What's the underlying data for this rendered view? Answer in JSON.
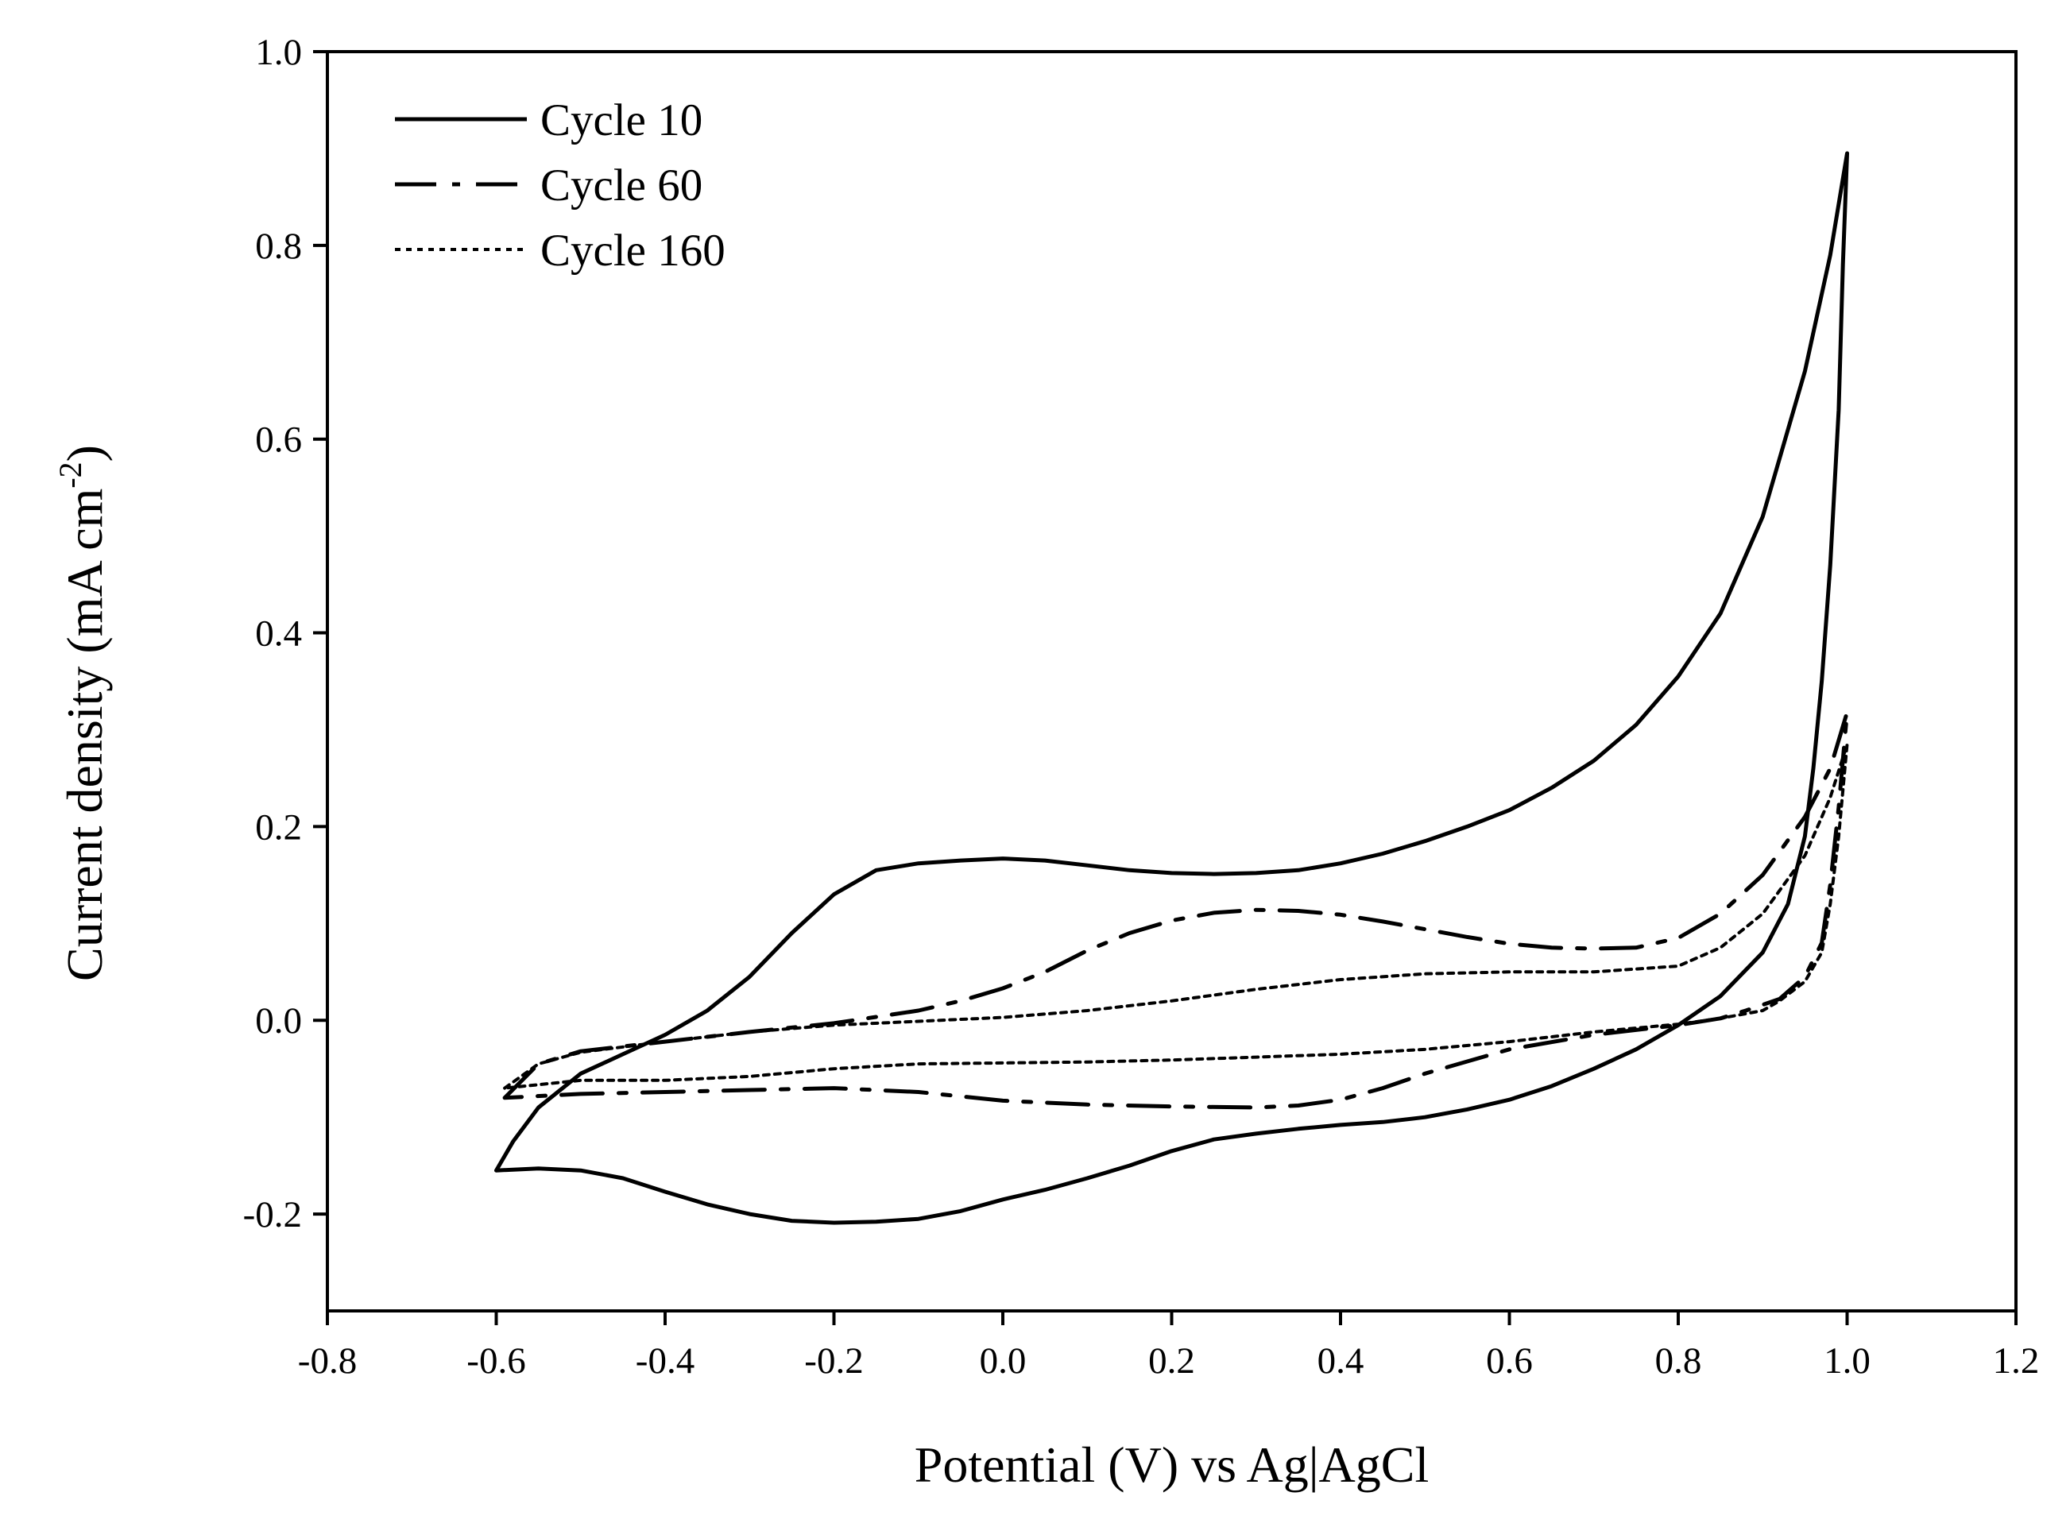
{
  "chart_data": {
    "type": "line",
    "title": "",
    "xlabel": "Potential (V) vs Ag|AgCl",
    "ylabel_main": "Current density (mA cm",
    "ylabel_sup": "-2",
    "ylabel_close": ")",
    "xlim": [
      -0.8,
      1.2
    ],
    "ylim": [
      -0.3,
      1.0
    ],
    "xticks": [
      -0.8,
      -0.6,
      -0.4,
      -0.2,
      0.0,
      0.2,
      0.4,
      0.6,
      0.8,
      1.0,
      1.2
    ],
    "xtick_labels": [
      "-0.8",
      "-0.6",
      "-0.4",
      "-0.2",
      "0.0",
      "0.2",
      "0.4",
      "0.6",
      "0.8",
      "1.0",
      "1.2"
    ],
    "yticks": [
      -0.2,
      0.0,
      0.2,
      0.4,
      0.6,
      0.8,
      1.0
    ],
    "ytick_labels": [
      "-0.2",
      "0.0",
      "0.2",
      "0.4",
      "0.6",
      "0.8",
      "1.0"
    ],
    "grid": false,
    "legend_position": "top-left",
    "series": [
      {
        "name": "Cycle 10",
        "style": "solid",
        "points": [
          [
            -0.6,
            -0.155
          ],
          [
            -0.58,
            -0.125
          ],
          [
            -0.55,
            -0.09
          ],
          [
            -0.5,
            -0.055
          ],
          [
            -0.45,
            -0.035
          ],
          [
            -0.4,
            -0.015
          ],
          [
            -0.35,
            0.01
          ],
          [
            -0.3,
            0.045
          ],
          [
            -0.25,
            0.09
          ],
          [
            -0.2,
            0.13
          ],
          [
            -0.15,
            0.155
          ],
          [
            -0.1,
            0.162
          ],
          [
            -0.05,
            0.165
          ],
          [
            0.0,
            0.167
          ],
          [
            0.05,
            0.165
          ],
          [
            0.1,
            0.16
          ],
          [
            0.15,
            0.155
          ],
          [
            0.2,
            0.152
          ],
          [
            0.25,
            0.151
          ],
          [
            0.3,
            0.152
          ],
          [
            0.35,
            0.155
          ],
          [
            0.4,
            0.162
          ],
          [
            0.45,
            0.172
          ],
          [
            0.5,
            0.185
          ],
          [
            0.55,
            0.2
          ],
          [
            0.6,
            0.217
          ],
          [
            0.65,
            0.24
          ],
          [
            0.7,
            0.268
          ],
          [
            0.75,
            0.305
          ],
          [
            0.8,
            0.355
          ],
          [
            0.85,
            0.42
          ],
          [
            0.9,
            0.52
          ],
          [
            0.95,
            0.67
          ],
          [
            0.98,
            0.79
          ],
          [
            1.0,
            0.895
          ],
          [
            0.995,
            0.78
          ],
          [
            0.99,
            0.63
          ],
          [
            0.98,
            0.47
          ],
          [
            0.97,
            0.35
          ],
          [
            0.96,
            0.26
          ],
          [
            0.95,
            0.19
          ],
          [
            0.93,
            0.12
          ],
          [
            0.9,
            0.07
          ],
          [
            0.85,
            0.025
          ],
          [
            0.8,
            -0.005
          ],
          [
            0.75,
            -0.03
          ],
          [
            0.7,
            -0.05
          ],
          [
            0.65,
            -0.068
          ],
          [
            0.6,
            -0.082
          ],
          [
            0.55,
            -0.092
          ],
          [
            0.5,
            -0.1
          ],
          [
            0.45,
            -0.105
          ],
          [
            0.4,
            -0.108
          ],
          [
            0.35,
            -0.112
          ],
          [
            0.3,
            -0.117
          ],
          [
            0.25,
            -0.123
          ],
          [
            0.2,
            -0.135
          ],
          [
            0.15,
            -0.15
          ],
          [
            0.1,
            -0.163
          ],
          [
            0.05,
            -0.175
          ],
          [
            0.0,
            -0.185
          ],
          [
            -0.05,
            -0.197
          ],
          [
            -0.1,
            -0.205
          ],
          [
            -0.15,
            -0.208
          ],
          [
            -0.2,
            -0.209
          ],
          [
            -0.25,
            -0.207
          ],
          [
            -0.3,
            -0.2
          ],
          [
            -0.35,
            -0.19
          ],
          [
            -0.4,
            -0.177
          ],
          [
            -0.45,
            -0.163
          ],
          [
            -0.5,
            -0.155
          ],
          [
            -0.55,
            -0.153
          ],
          [
            -0.6,
            -0.155
          ]
        ]
      },
      {
        "name": "Cycle 60",
        "style": "dashdot",
        "points": [
          [
            -0.59,
            -0.08
          ],
          [
            -0.55,
            -0.045
          ],
          [
            -0.5,
            -0.032
          ],
          [
            -0.4,
            -0.022
          ],
          [
            -0.3,
            -0.012
          ],
          [
            -0.2,
            -0.003
          ],
          [
            -0.1,
            0.01
          ],
          [
            -0.05,
            0.02
          ],
          [
            0.0,
            0.033
          ],
          [
            0.05,
            0.05
          ],
          [
            0.1,
            0.072
          ],
          [
            0.15,
            0.09
          ],
          [
            0.2,
            0.103
          ],
          [
            0.25,
            0.111
          ],
          [
            0.3,
            0.114
          ],
          [
            0.35,
            0.113
          ],
          [
            0.4,
            0.109
          ],
          [
            0.45,
            0.102
          ],
          [
            0.5,
            0.094
          ],
          [
            0.55,
            0.086
          ],
          [
            0.6,
            0.079
          ],
          [
            0.65,
            0.075
          ],
          [
            0.7,
            0.074
          ],
          [
            0.75,
            0.075
          ],
          [
            0.8,
            0.085
          ],
          [
            0.85,
            0.11
          ],
          [
            0.9,
            0.15
          ],
          [
            0.95,
            0.21
          ],
          [
            0.98,
            0.26
          ],
          [
            1.0,
            0.318
          ],
          [
            0.99,
            0.22
          ],
          [
            0.98,
            0.14
          ],
          [
            0.97,
            0.08
          ],
          [
            0.95,
            0.045
          ],
          [
            0.92,
            0.022
          ],
          [
            0.88,
            0.01
          ],
          [
            0.85,
            0.002
          ],
          [
            0.8,
            -0.005
          ],
          [
            0.7,
            -0.015
          ],
          [
            0.6,
            -0.03
          ],
          [
            0.5,
            -0.055
          ],
          [
            0.45,
            -0.07
          ],
          [
            0.4,
            -0.082
          ],
          [
            0.35,
            -0.088
          ],
          [
            0.3,
            -0.09
          ],
          [
            0.2,
            -0.089
          ],
          [
            0.1,
            -0.087
          ],
          [
            0.0,
            -0.083
          ],
          [
            -0.1,
            -0.074
          ],
          [
            -0.2,
            -0.07
          ],
          [
            -0.3,
            -0.072
          ],
          [
            -0.4,
            -0.074
          ],
          [
            -0.5,
            -0.076
          ],
          [
            -0.59,
            -0.08
          ]
        ]
      },
      {
        "name": "Cycle 160",
        "style": "dotted",
        "points": [
          [
            -0.59,
            -0.07
          ],
          [
            -0.55,
            -0.045
          ],
          [
            -0.5,
            -0.033
          ],
          [
            -0.4,
            -0.022
          ],
          [
            -0.3,
            -0.012
          ],
          [
            -0.2,
            -0.005
          ],
          [
            -0.1,
            -0.001
          ],
          [
            0.0,
            0.003
          ],
          [
            0.1,
            0.01
          ],
          [
            0.2,
            0.02
          ],
          [
            0.3,
            0.032
          ],
          [
            0.4,
            0.042
          ],
          [
            0.5,
            0.048
          ],
          [
            0.6,
            0.05
          ],
          [
            0.7,
            0.05
          ],
          [
            0.8,
            0.056
          ],
          [
            0.85,
            0.075
          ],
          [
            0.9,
            0.11
          ],
          [
            0.95,
            0.17
          ],
          [
            0.98,
            0.23
          ],
          [
            1.0,
            0.285
          ],
          [
            0.99,
            0.19
          ],
          [
            0.98,
            0.12
          ],
          [
            0.97,
            0.07
          ],
          [
            0.95,
            0.04
          ],
          [
            0.92,
            0.02
          ],
          [
            0.9,
            0.01
          ],
          [
            0.85,
            0.002
          ],
          [
            0.8,
            -0.004
          ],
          [
            0.7,
            -0.012
          ],
          [
            0.6,
            -0.022
          ],
          [
            0.5,
            -0.03
          ],
          [
            0.4,
            -0.035
          ],
          [
            0.3,
            -0.038
          ],
          [
            0.2,
            -0.041
          ],
          [
            0.1,
            -0.043
          ],
          [
            0.0,
            -0.044
          ],
          [
            -0.1,
            -0.045
          ],
          [
            -0.2,
            -0.05
          ],
          [
            -0.3,
            -0.058
          ],
          [
            -0.4,
            -0.062
          ],
          [
            -0.5,
            -0.062
          ],
          [
            -0.59,
            -0.07
          ]
        ]
      }
    ]
  }
}
